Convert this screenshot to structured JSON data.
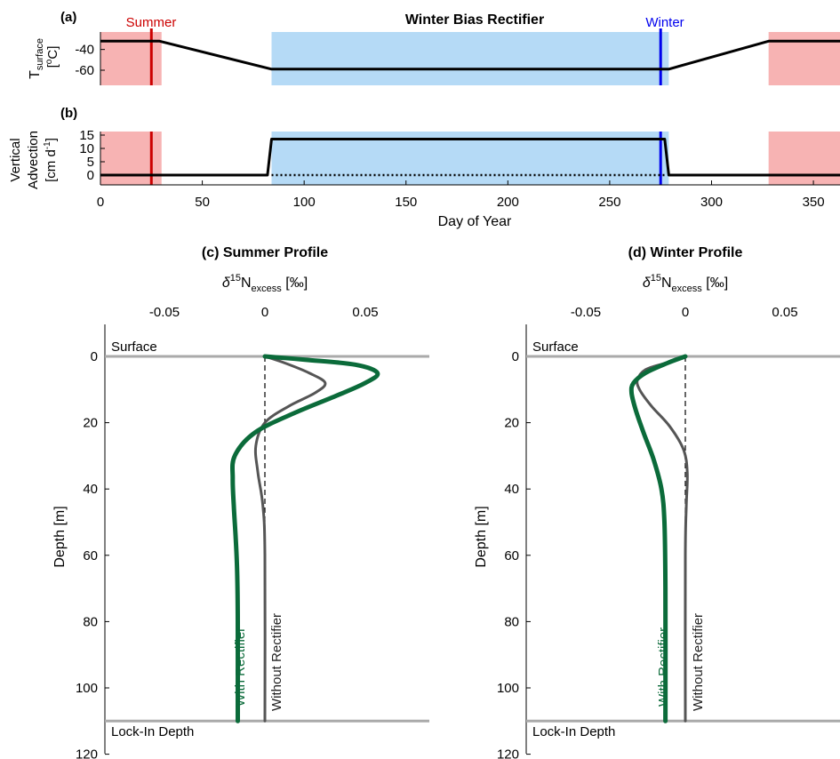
{
  "figure_title": "Winter Bias Rectifier",
  "colors": {
    "summer_red": "#cc0000",
    "summer_shade": "#f7b3b3",
    "winter_blue": "#0000ee",
    "winter_shade": "#b5daf6",
    "green": "#0b6b3a",
    "gray": "#555555",
    "boundary_gray": "#aaaaaa"
  },
  "panel_a": {
    "label": "(a)",
    "ylabel_main": "T",
    "ylabel_sub": "surface",
    "ylabel_unit_open": "[",
    "ylabel_unit_sup": "o",
    "ylabel_unit_rest": "C]",
    "summer_label": "Summer",
    "winter_label": "Winter"
  },
  "panel_b": {
    "label": "(b)",
    "ylabel_line1": "Vertical",
    "ylabel_line2": "Advection",
    "ylabel_line3_open": "[cm d",
    "ylabel_line3_sup": "-1",
    "ylabel_line3_close": "]",
    "xlabel": "Day of Year"
  },
  "panel_c": {
    "title": "(c) Summer Profile",
    "with_label": "With Rectifier",
    "without_label": "Without Rectifier"
  },
  "panel_d": {
    "title": "(d) Winter Profile",
    "with_label": "With Rectifier",
    "without_label": "Without Rectifier"
  },
  "profile_axes": {
    "xlabel_delta": "δ",
    "xlabel_sup": "15",
    "xlabel_N": "N",
    "xlabel_sub": "excess",
    "xlabel_unit": " [‰]",
    "ylabel": "Depth [m]",
    "surface_label": "Surface",
    "lockin_label": "Lock-In Depth"
  },
  "chart_data": [
    {
      "type": "line",
      "panel": "a",
      "title": "Winter Bias Rectifier",
      "xlim": [
        0,
        360
      ],
      "ylim": [
        -75,
        -28
      ],
      "xticks": [],
      "yticks": [
        -40,
        -60
      ],
      "ytick_labels": [
        "-40",
        "-60"
      ],
      "shaded_regions": [
        {
          "name": "Summer",
          "from": 0,
          "to": 30
        },
        {
          "name": "Summer",
          "from": 328,
          "to": 365
        },
        {
          "name": "Winter",
          "from": 84,
          "to": 279
        }
      ],
      "markers": [
        {
          "name": "Summer",
          "x": 25
        },
        {
          "name": "Winter",
          "x": 275
        }
      ],
      "series": [
        {
          "x": [
            0,
            29,
            84,
            279,
            328,
            365
          ],
          "y": [
            -32,
            -32,
            -59,
            -59,
            -32,
            -32
          ]
        }
      ]
    },
    {
      "type": "line",
      "panel": "b",
      "xlim": [
        0,
        360
      ],
      "ylim": [
        -5,
        15
      ],
      "xlabel": "Day of Year",
      "xticks": [
        0,
        50,
        100,
        150,
        200,
        250,
        300,
        350
      ],
      "yticks": [
        15,
        10,
        5,
        0
      ],
      "shaded_regions": [
        {
          "name": "Summer",
          "from": 0,
          "to": 30
        },
        {
          "name": "Summer",
          "from": 328,
          "to": 365
        },
        {
          "name": "Winter",
          "from": 84,
          "to": 279
        }
      ],
      "markers": [
        {
          "name": "Summer",
          "x": 25
        },
        {
          "name": "Winter",
          "x": 275
        }
      ],
      "series": [
        {
          "name": "With Rectifier",
          "x": [
            0,
            82,
            84,
            277,
            279,
            365
          ],
          "y": [
            0,
            0,
            13.5,
            13.5,
            0,
            0
          ]
        },
        {
          "name": "Without Rectifier",
          "style": "dotted",
          "x": [
            84,
            277
          ],
          "y": [
            0,
            0
          ]
        }
      ]
    },
    {
      "type": "line",
      "panel": "c",
      "title": "(c) Summer Profile",
      "xlabel": "δ15N excess [‰]",
      "ylabel": "Depth [m]",
      "xlim": [
        -0.08,
        0.08
      ],
      "ylim": [
        120,
        -10
      ],
      "xticks": [
        -0.05,
        0,
        0.05
      ],
      "xtick_labels": [
        "-0.05",
        "0",
        "0.05"
      ],
      "yticks": [
        0,
        20,
        40,
        60,
        80,
        100,
        120
      ],
      "surface_depth": 0,
      "lockin_depth": 110,
      "series": [
        {
          "name": "With Rectifier",
          "x": [
            0,
            0.02,
            0.045,
            0.056,
            0.05,
            0.035,
            0.015,
            -0.005,
            -0.015,
            -0.016,
            -0.0155,
            -0.0145,
            -0.0138,
            -0.0135,
            -0.0135
          ],
          "y": [
            0,
            1,
            2.5,
            5,
            8,
            12,
            17,
            23,
            30,
            37,
            45,
            55,
            65,
            80,
            110
          ]
        },
        {
          "name": "Without Rectifier",
          "x": [
            0,
            0.01,
            0.022,
            0.03,
            0.025,
            0.012,
            0,
            -0.0045,
            -0.0035,
            -0.001,
            0,
            0
          ],
          "y": [
            0,
            2,
            5,
            8,
            11,
            15,
            20,
            27,
            35,
            45,
            60,
            110
          ]
        }
      ]
    },
    {
      "type": "line",
      "panel": "d",
      "title": "(d) Winter Profile",
      "xlabel": "δ15N excess [‰]",
      "ylabel": "Depth [m]",
      "xlim": [
        -0.08,
        0.08
      ],
      "ylim": [
        120,
        -10
      ],
      "xticks": [
        -0.05,
        0,
        0.05
      ],
      "xtick_labels": [
        "-0.05",
        "0",
        "0.05"
      ],
      "yticks": [
        0,
        20,
        40,
        60,
        80,
        100,
        120
      ],
      "surface_depth": 0,
      "lockin_depth": 110,
      "series": [
        {
          "name": "With Rectifier",
          "x": [
            0,
            -0.009,
            -0.02,
            -0.026,
            -0.027,
            -0.025,
            -0.021,
            -0.016,
            -0.012,
            -0.0105,
            -0.01,
            -0.01
          ],
          "y": [
            0,
            2,
            5,
            8,
            11,
            16,
            23,
            31,
            40,
            50,
            70,
            110
          ]
        },
        {
          "name": "Without Rectifier",
          "x": [
            0,
            -0.01,
            -0.02,
            -0.024,
            -0.023,
            -0.017,
            -0.008,
            -0.001,
            0.001,
            0.0005,
            0,
            0
          ],
          "y": [
            0,
            2,
            4,
            7,
            10,
            15,
            21,
            28,
            35,
            45,
            60,
            110
          ]
        }
      ]
    }
  ]
}
